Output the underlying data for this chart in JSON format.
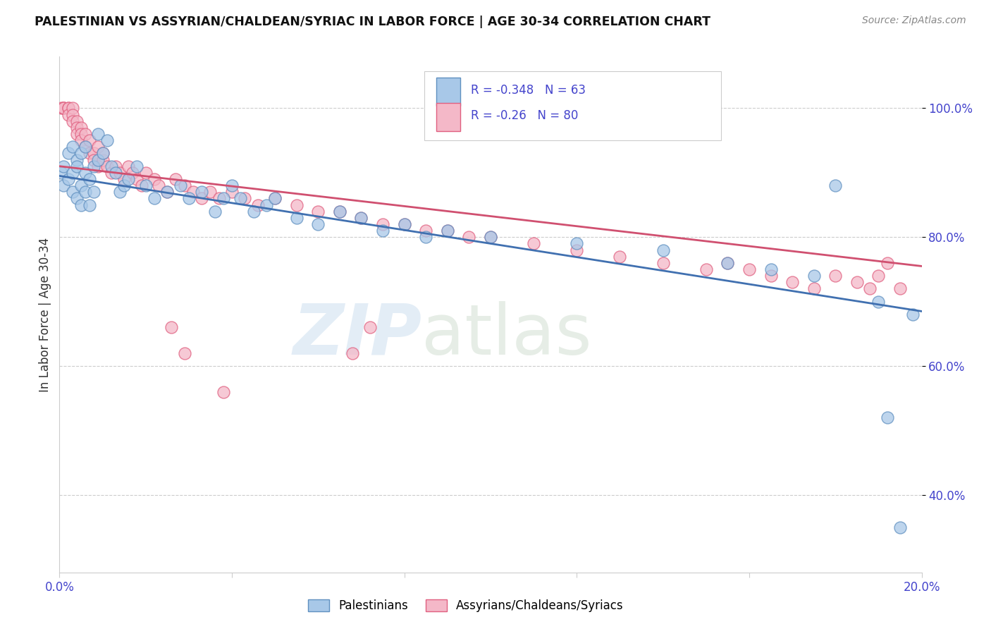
{
  "title": "PALESTINIAN VS ASSYRIAN/CHALDEAN/SYRIAC IN LABOR FORCE | AGE 30-34 CORRELATION CHART",
  "source": "Source: ZipAtlas.com",
  "ylabel": "In Labor Force | Age 30-34",
  "xlim": [
    0.0,
    0.2
  ],
  "ylim": [
    0.28,
    1.08
  ],
  "blue_R": -0.348,
  "blue_N": 63,
  "pink_R": -0.26,
  "pink_N": 80,
  "blue_color": "#a8c8e8",
  "pink_color": "#f4b8c8",
  "blue_edge_color": "#6090c0",
  "pink_edge_color": "#e06080",
  "blue_line_color": "#4070b0",
  "pink_line_color": "#d05070",
  "background_color": "#ffffff",
  "grid_color": "#cccccc",
  "axis_tick_color": "#4444cc",
  "legend_label_blue": "Palestinians",
  "legend_label_pink": "Assyrians/Chaldeans/Syriacs",
  "blue_line_y0": 0.895,
  "blue_line_y1": 0.685,
  "pink_line_y0": 0.91,
  "pink_line_y1": 0.755,
  "blue_scatter_x": [
    0.0005,
    0.001,
    0.001,
    0.002,
    0.002,
    0.003,
    0.003,
    0.003,
    0.004,
    0.004,
    0.004,
    0.005,
    0.005,
    0.005,
    0.006,
    0.006,
    0.006,
    0.007,
    0.007,
    0.008,
    0.008,
    0.009,
    0.009,
    0.01,
    0.011,
    0.012,
    0.013,
    0.014,
    0.015,
    0.016,
    0.018,
    0.02,
    0.022,
    0.025,
    0.028,
    0.03,
    0.033,
    0.036,
    0.038,
    0.04,
    0.042,
    0.045,
    0.048,
    0.05,
    0.055,
    0.06,
    0.065,
    0.07,
    0.075,
    0.08,
    0.085,
    0.09,
    0.1,
    0.12,
    0.14,
    0.155,
    0.165,
    0.175,
    0.18,
    0.19,
    0.192,
    0.195,
    0.198
  ],
  "blue_scatter_y": [
    0.9,
    0.91,
    0.88,
    0.93,
    0.89,
    0.9,
    0.94,
    0.87,
    0.92,
    0.86,
    0.91,
    0.88,
    0.93,
    0.85,
    0.9,
    0.87,
    0.94,
    0.89,
    0.85,
    0.91,
    0.87,
    0.92,
    0.96,
    0.93,
    0.95,
    0.91,
    0.9,
    0.87,
    0.88,
    0.89,
    0.91,
    0.88,
    0.86,
    0.87,
    0.88,
    0.86,
    0.87,
    0.84,
    0.86,
    0.88,
    0.86,
    0.84,
    0.85,
    0.86,
    0.83,
    0.82,
    0.84,
    0.83,
    0.81,
    0.82,
    0.8,
    0.81,
    0.8,
    0.79,
    0.78,
    0.76,
    0.75,
    0.74,
    0.88,
    0.7,
    0.52,
    0.35,
    0.68
  ],
  "pink_scatter_x": [
    0.0005,
    0.001,
    0.001,
    0.001,
    0.002,
    0.002,
    0.002,
    0.003,
    0.003,
    0.003,
    0.004,
    0.004,
    0.004,
    0.005,
    0.005,
    0.005,
    0.006,
    0.006,
    0.007,
    0.007,
    0.008,
    0.008,
    0.009,
    0.009,
    0.01,
    0.01,
    0.011,
    0.012,
    0.013,
    0.014,
    0.015,
    0.016,
    0.017,
    0.018,
    0.019,
    0.02,
    0.022,
    0.023,
    0.025,
    0.027,
    0.029,
    0.031,
    0.033,
    0.035,
    0.037,
    0.04,
    0.043,
    0.046,
    0.05,
    0.055,
    0.06,
    0.065,
    0.07,
    0.075,
    0.08,
    0.085,
    0.09,
    0.095,
    0.1,
    0.11,
    0.12,
    0.13,
    0.14,
    0.15,
    0.155,
    0.16,
    0.165,
    0.17,
    0.175,
    0.18,
    0.185,
    0.188,
    0.19,
    0.192,
    0.195,
    0.026,
    0.029,
    0.038,
    0.072,
    0.068
  ],
  "pink_scatter_y": [
    1.0,
    1.0,
    1.0,
    1.0,
    1.0,
    1.0,
    0.99,
    1.0,
    0.99,
    0.98,
    0.98,
    0.97,
    0.96,
    0.97,
    0.96,
    0.95,
    0.94,
    0.96,
    0.93,
    0.95,
    0.93,
    0.92,
    0.94,
    0.91,
    0.92,
    0.93,
    0.91,
    0.9,
    0.91,
    0.9,
    0.89,
    0.91,
    0.9,
    0.89,
    0.88,
    0.9,
    0.89,
    0.88,
    0.87,
    0.89,
    0.88,
    0.87,
    0.86,
    0.87,
    0.86,
    0.87,
    0.86,
    0.85,
    0.86,
    0.85,
    0.84,
    0.84,
    0.83,
    0.82,
    0.82,
    0.81,
    0.81,
    0.8,
    0.8,
    0.79,
    0.78,
    0.77,
    0.76,
    0.75,
    0.76,
    0.75,
    0.74,
    0.73,
    0.72,
    0.74,
    0.73,
    0.72,
    0.74,
    0.76,
    0.72,
    0.66,
    0.62,
    0.56,
    0.66,
    0.62
  ]
}
